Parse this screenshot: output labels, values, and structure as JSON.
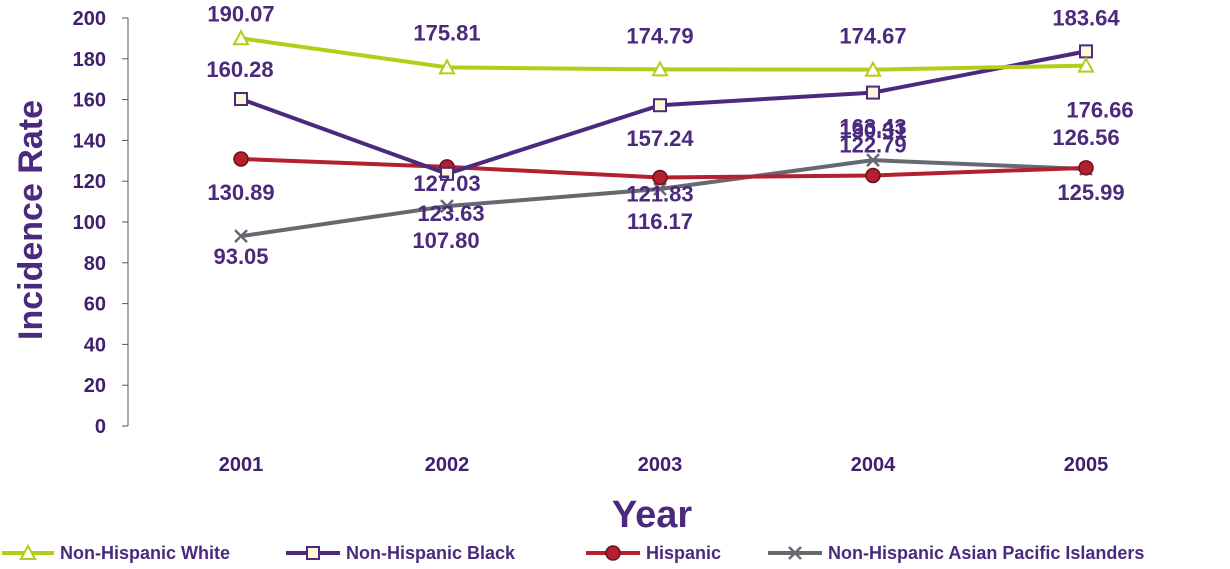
{
  "chart_data": {
    "type": "line",
    "title": "",
    "xlabel": "Year",
    "ylabel": "Incidence Rate",
    "categories": [
      "2001",
      "2002",
      "2003",
      "2004",
      "2005"
    ],
    "ylim": [
      0,
      200
    ],
    "yticks": [
      0,
      20,
      40,
      60,
      80,
      100,
      120,
      140,
      160,
      180,
      200
    ],
    "grid": false,
    "legend_position": "bottom",
    "series": [
      {
        "name": "Non-Hispanic White",
        "values": [
          190.07,
          175.81,
          174.79,
          174.67,
          176.66
        ],
        "labels": [
          "190.07",
          "175.81",
          "174.79",
          "174.67",
          "176.66"
        ],
        "color": "#b5cc18",
        "marker": "triangle"
      },
      {
        "name": "Non-Hispanic Black",
        "values": [
          160.28,
          123.63,
          157.24,
          163.43,
          183.64
        ],
        "labels": [
          "160.28",
          "123.63",
          "157.24",
          "163.43",
          "183.64"
        ],
        "color": "#4b2a7d",
        "marker": "square"
      },
      {
        "name": "Hispanic",
        "values": [
          130.89,
          127.03,
          121.83,
          122.79,
          126.56
        ],
        "labels": [
          "130.89",
          "127.03",
          "121.83",
          "122.79",
          "126.56"
        ],
        "color": "#b3202f",
        "marker": "circle"
      },
      {
        "name": "Non-Hispanic Asian Pacific Islanders",
        "values": [
          93.05,
          107.8,
          116.17,
          130.31,
          125.99
        ],
        "labels": [
          "93.05",
          "107.80",
          "116.17",
          "130.31",
          "125.99"
        ],
        "color": "#666a70",
        "marker": "x"
      }
    ]
  }
}
